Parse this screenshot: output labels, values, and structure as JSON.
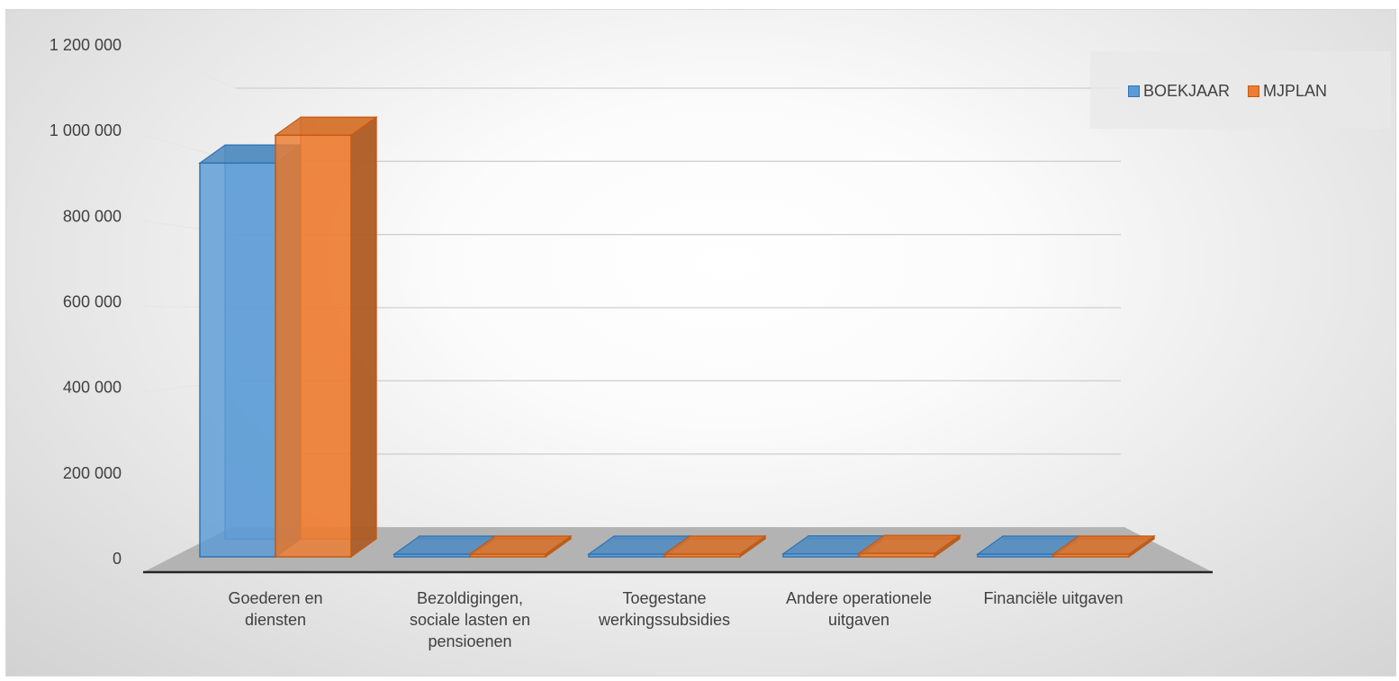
{
  "chart_data": {
    "type": "bar",
    "title": "",
    "xlabel": "",
    "ylabel": "",
    "categories": [
      [
        "Goederen en",
        "diensten"
      ],
      [
        "Bezoldigingen,",
        "sociale lasten en",
        "pensioenen"
      ],
      [
        "Toegestane",
        "werkingssubsidies"
      ],
      [
        "Andere operationele",
        "uitgaven"
      ],
      [
        "Financiële uitgaven"
      ]
    ],
    "series": [
      {
        "name": "BOEKJAAR",
        "values": [
          920000,
          0,
          0,
          7000,
          3000
        ],
        "color": "#5b9bd5",
        "edge": "#2e75b6"
      },
      {
        "name": "MJPLAN",
        "values": [
          985000,
          0,
          0,
          8000,
          3000
        ],
        "color": "#ed7d31",
        "edge": "#c55a11"
      }
    ],
    "ylim": [
      0,
      1200000
    ],
    "yticks": [
      0,
      200000,
      400000,
      600000,
      800000,
      1000000,
      1200000
    ],
    "ytick_labels": [
      "0",
      "200 000",
      "400 000",
      "600 000",
      "800 000",
      "1 000 000",
      "1 200 000"
    ],
    "grid": true,
    "legend": "top-right",
    "style": "3d-column"
  }
}
